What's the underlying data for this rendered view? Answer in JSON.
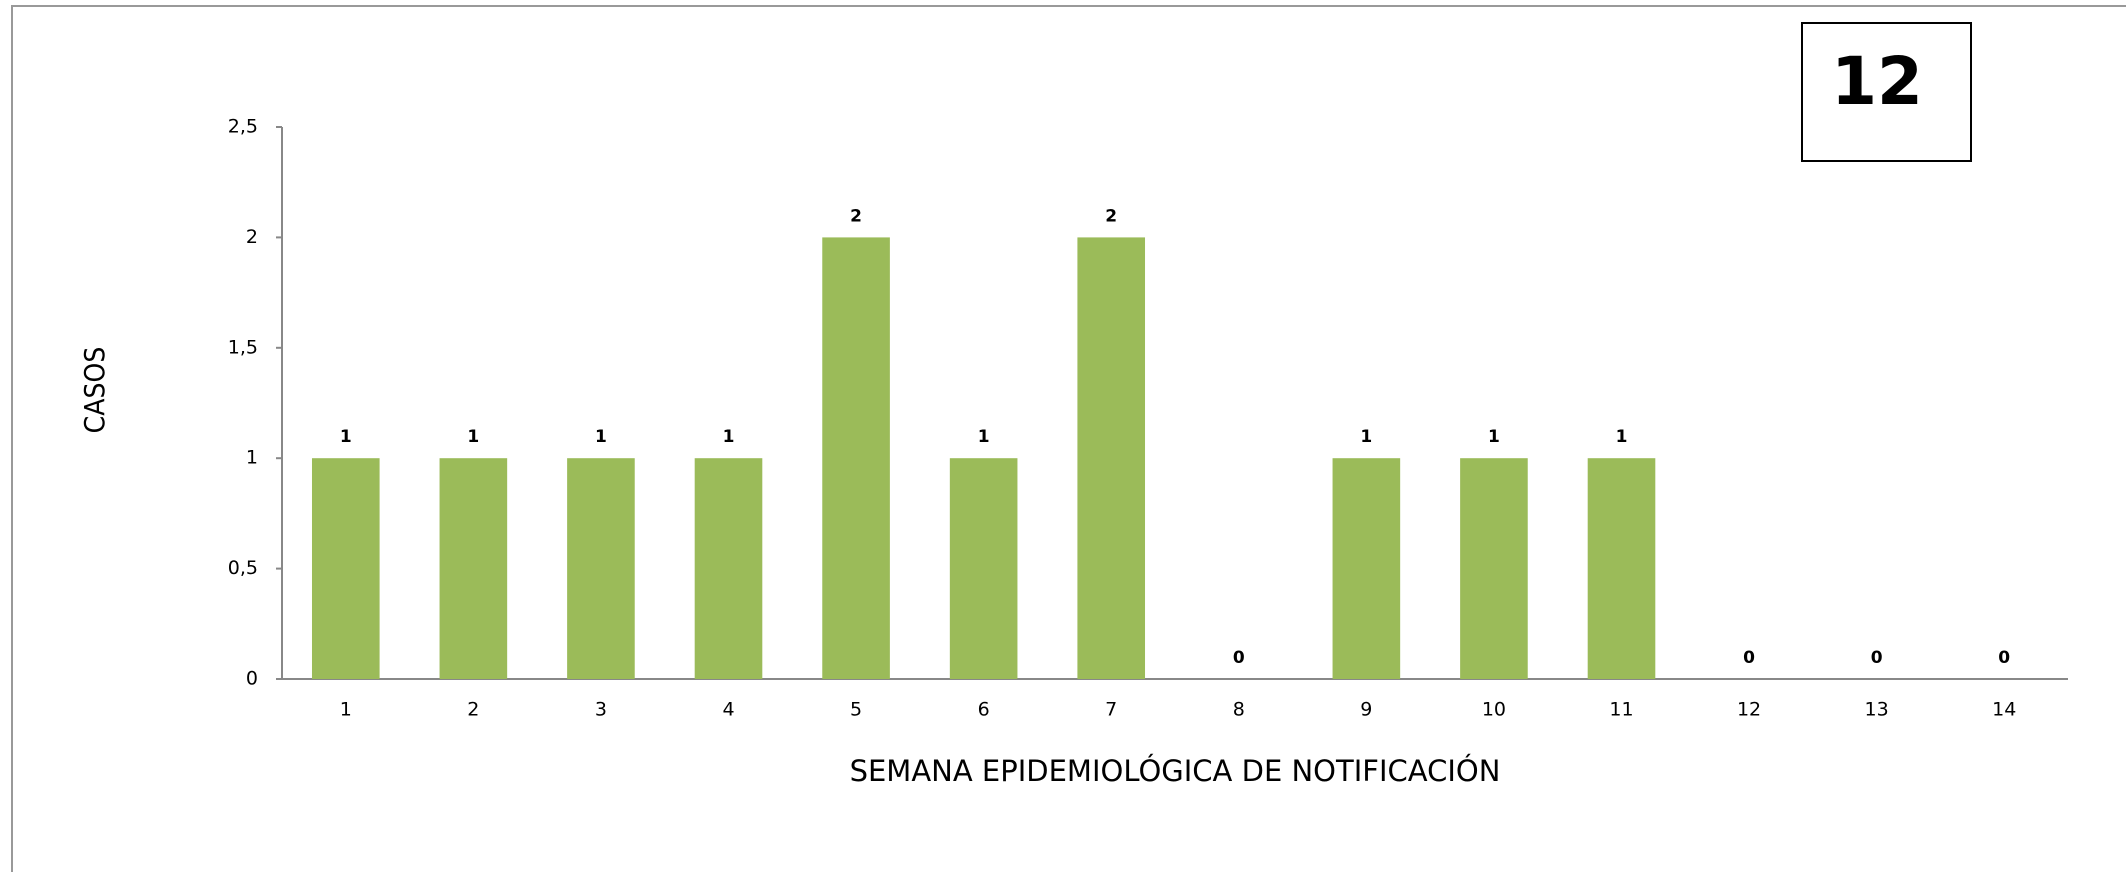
{
  "chart_data": {
    "type": "bar",
    "annotation": "12",
    "ylabel": "CASOS",
    "xlabel": "SEMANA EPIDEMIOLÓGICA DE NOTIFICACIÓN",
    "categories": [
      "1",
      "2",
      "3",
      "4",
      "5",
      "6",
      "7",
      "8",
      "9",
      "10",
      "11",
      "12",
      "13",
      "14"
    ],
    "values": [
      1,
      1,
      1,
      1,
      2,
      1,
      2,
      0,
      1,
      1,
      1,
      0,
      0,
      0
    ],
    "color": "#9bbb59",
    "ylim": [
      0,
      2.5
    ],
    "yticks": [
      0,
      {
        "value": 0.5,
        "label": "0,5"
      },
      1,
      {
        "value": 1.5,
        "label": "1,5"
      },
      2,
      {
        "value": 2.5,
        "label": "2,5"
      }
    ],
    "grid": false
  }
}
